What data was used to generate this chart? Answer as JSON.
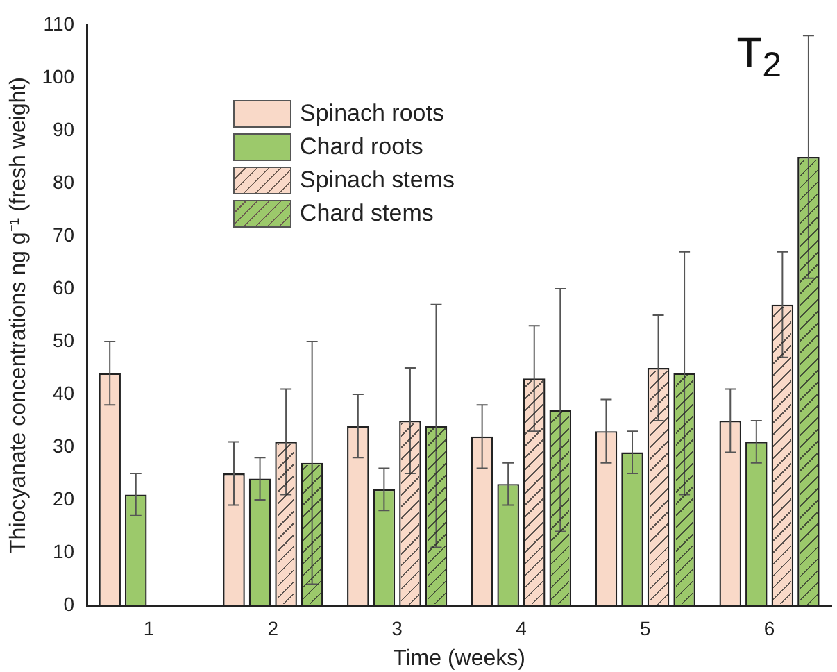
{
  "chart_data": {
    "type": "bar",
    "title": "T$_{2}$",
    "xlabel": "Time (weeks)",
    "ylabel": "Thiocyanate concentrations ng g⁻¹ (fresh weight)",
    "categories": [
      "1",
      "2",
      "3",
      "4",
      "5",
      "6"
    ],
    "series": [
      {
        "name": "Spinach roots",
        "color": "#f9d9c8",
        "values": [
          44,
          25,
          34,
          32,
          33,
          35
        ],
        "errors": [
          6,
          6,
          6,
          6,
          6,
          6
        ]
      },
      {
        "name": "Chard roots",
        "color": "#9cc96b",
        "values": [
          21,
          24,
          22,
          23,
          29,
          31
        ],
        "errors": [
          4,
          4,
          4,
          4,
          4,
          4
        ]
      },
      {
        "name": "Spinach stems",
        "color": "#f9d9c8",
        "values": [
          null,
          31,
          35,
          43,
          45,
          57
        ],
        "errors": [
          null,
          10,
          10,
          10,
          10,
          10
        ]
      },
      {
        "name": "Chard stems",
        "color": "#9cc96b",
        "values": [
          null,
          27,
          34,
          37,
          44,
          85
        ],
        "errors": [
          null,
          23,
          23,
          23,
          23,
          23
        ]
      }
    ],
    "ylim": [
      0,
      110
    ],
    "yticks": [
      0,
      10,
      20,
      30,
      40,
      50,
      60,
      70,
      80,
      90,
      100,
      110
    ],
    "grid": false,
    "legend": "top left"
  }
}
